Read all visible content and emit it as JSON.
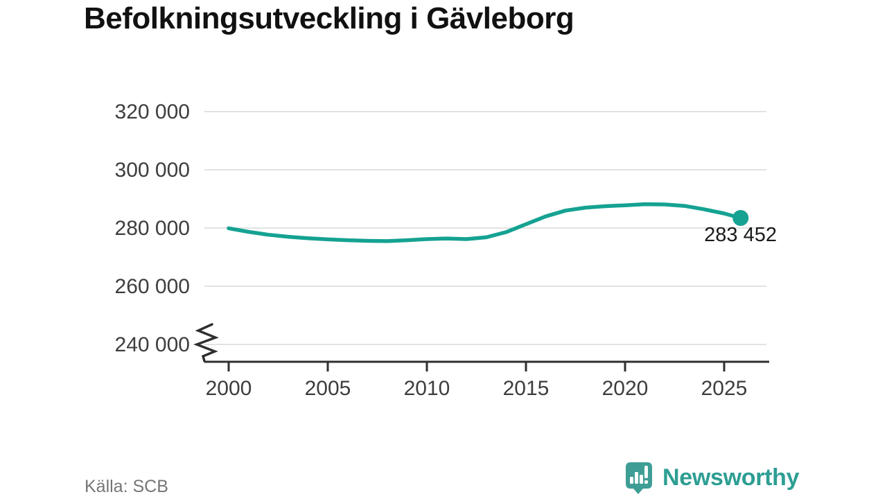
{
  "title": "Befolkningsutveckling i Gävleborg",
  "footer": {
    "source": "Källa: SCB"
  },
  "branding": {
    "name": "Newsworthy",
    "icon": "speech-bubble-bar-chart-icon",
    "text_color": "#2d9e93",
    "icon_color": "#3e9e96"
  },
  "colors": {
    "line": "#15a292",
    "grid": "#e2e2e2",
    "axis": "#2f2f2f",
    "tick_text": "#3d3d3d",
    "end_label_text": "#1a1a1a",
    "background": "#ffffff"
  },
  "chart_data": {
    "type": "line",
    "title": "Befolkningsutveckling i Gävleborg",
    "xlabel": "",
    "ylabel": "",
    "grid": "horizontal",
    "legend": "none",
    "axis_break_bottom_left": true,
    "x_ticks": [
      2000,
      2005,
      2010,
      2015,
      2020,
      2025
    ],
    "x_tick_labels": [
      "2000",
      "2005",
      "2010",
      "2015",
      "2020",
      "2025"
    ],
    "y_ticks": [
      240000,
      260000,
      280000,
      300000,
      320000
    ],
    "y_tick_labels": [
      "240 000",
      "260 000",
      "280 000",
      "300 000",
      "320 000"
    ],
    "xlim": [
      1998.8,
      2027.3
    ],
    "ylim_shown": [
      240000,
      320000
    ],
    "end_label": "283 452",
    "end_value": 283452,
    "series": [
      {
        "name": "Befolkning i Gävleborg",
        "x": [
          2000,
          2001,
          2002,
          2003,
          2004,
          2005,
          2006,
          2007,
          2008,
          2009,
          2010,
          2011,
          2012,
          2013,
          2014,
          2015,
          2016,
          2017,
          2018,
          2019,
          2020,
          2021,
          2022,
          2023,
          2024,
          2025,
          2025.83
        ],
        "y": [
          279900,
          278700,
          277700,
          277000,
          276500,
          276100,
          275800,
          275600,
          275500,
          275800,
          276200,
          276400,
          276200,
          276800,
          278600,
          281300,
          284000,
          286000,
          287000,
          287500,
          287800,
          288200,
          288100,
          287600,
          286400,
          285000,
          283452
        ]
      }
    ]
  }
}
